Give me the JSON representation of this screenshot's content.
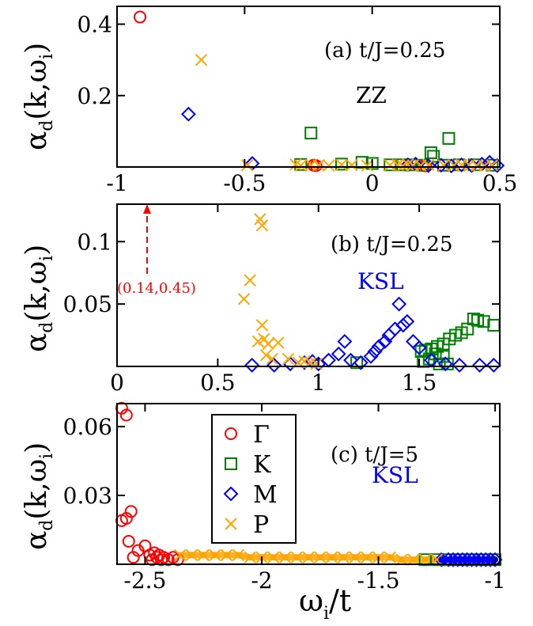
{
  "colors": {
    "Gamma": "#ff0000",
    "K": "#008000",
    "M": "#0000ff",
    "P": "#ffa500",
    "phase_zz": "#000000",
    "phase_ksl": "#0000ff",
    "arrow": "#ff0000"
  },
  "legend": {
    "items": [
      {
        "key": "Gamma",
        "label": "Γ",
        "marker": "circle"
      },
      {
        "key": "K",
        "label": "K",
        "marker": "square"
      },
      {
        "key": "M",
        "label": "M",
        "marker": "diamond"
      },
      {
        "key": "P",
        "label": "P",
        "marker": "cross"
      }
    ]
  },
  "x_axis_label": {
    "main": "ω",
    "sub": "i",
    "rest": "/t"
  },
  "chart_data": [
    {
      "type": "scatter",
      "panel": "a",
      "annotation": "(a) t/J=0.25",
      "phase": "ZZ",
      "phase_color_key": "phase_zz",
      "ylabel": {
        "main": "α",
        "sub": "d",
        "rest": "(k,ω",
        "sub2": "i",
        "close": ")"
      },
      "xlim": [
        -1,
        0.5
      ],
      "ylim": [
        0,
        0.45
      ],
      "xticks": [
        -1,
        -0.5,
        0,
        0.5
      ],
      "xticklabels": [
        "-1",
        "-0.5",
        "0",
        "0.5"
      ],
      "yticks": [
        0.2,
        0.4
      ],
      "yticklabels": [
        "0.2",
        "0.4"
      ],
      "series": [
        {
          "key": "Gamma",
          "x": [
            -0.91,
            -0.23,
            -0.22,
            0.2,
            0.21
          ],
          "y": [
            0.42,
            0.005,
            0.004,
            0.004,
            0.003
          ]
        },
        {
          "key": "K",
          "x": [
            -0.24,
            0.3,
            0.23,
            0.24,
            -0.04,
            -0.12,
            0.0,
            0.07,
            0.12,
            0.15,
            0.2,
            0.28,
            0.34,
            0.4,
            0.47,
            -0.28
          ],
          "y": [
            0.095,
            0.08,
            0.04,
            0.03,
            0.013,
            0.008,
            0.01,
            0.006,
            0.006,
            0.006,
            0.005,
            0.005,
            0.006,
            0.006,
            0.005,
            0.007
          ]
        },
        {
          "key": "M",
          "x": [
            -0.72,
            -0.47,
            0.14,
            0.17,
            0.22,
            0.27,
            0.31,
            0.35,
            0.39,
            0.43,
            0.46,
            0.49
          ],
          "y": [
            0.148,
            0.01,
            0.006,
            0.008,
            0.004,
            0.005,
            0.003,
            0.006,
            0.004,
            0.008,
            0.013,
            0.004
          ]
        },
        {
          "key": "P",
          "x": [
            -0.67,
            -0.49,
            -0.3,
            -0.28,
            -0.24,
            -0.21,
            -0.17,
            -0.12,
            -0.08,
            -0.02,
            0.07,
            0.1,
            0.12,
            0.14,
            0.16,
            0.19,
            0.22,
            0.28,
            0.32,
            0.35,
            0.38,
            0.41,
            0.44,
            0.47
          ],
          "y": [
            0.3,
            0.005,
            0.007,
            0.004,
            0.006,
            0.005,
            0.004,
            0.006,
            0.005,
            0.004,
            0.005,
            0.006,
            0.003,
            0.007,
            0.005,
            0.004,
            0.006,
            0.005,
            0.004,
            0.006,
            0.005,
            0.004,
            0.003,
            0.005
          ]
        }
      ]
    },
    {
      "type": "scatter",
      "panel": "b",
      "annotation": "(b) t/J=0.25",
      "phase": "KSL",
      "phase_color_key": "phase_ksl",
      "arrow_label": "(0.14,0.45)",
      "arrow_x": 0.14,
      "ylabel": {
        "main": "α",
        "sub": "d",
        "rest": "(k,ω",
        "sub2": "i",
        "close": ")"
      },
      "xlim": [
        0,
        1.9
      ],
      "ylim": [
        0,
        0.13
      ],
      "xticks": [
        0,
        0.5,
        1,
        1.5
      ],
      "xticklabels": [
        "0",
        "0.5",
        "1",
        "1.5"
      ],
      "yticks": [
        0.05,
        0.1
      ],
      "yticklabels": [
        "0.05",
        "0.1"
      ],
      "series": [
        {
          "key": "Gamma",
          "x": [],
          "y": []
        },
        {
          "key": "K",
          "x": [
            1.77,
            1.79,
            1.82,
            1.87,
            1.74,
            1.71,
            1.68,
            1.65,
            1.62,
            1.59,
            1.56,
            1.53,
            1.51,
            1.58,
            1.62,
            1.55,
            1.52,
            1.19,
            1.6,
            1.64
          ],
          "y": [
            0.038,
            0.037,
            0.036,
            0.033,
            0.03,
            0.027,
            0.025,
            0.022,
            0.018,
            0.016,
            0.014,
            0.013,
            0.012,
            0.01,
            0.008,
            0.006,
            0.004,
            0.003,
            0.002,
            0.002
          ]
        },
        {
          "key": "M",
          "x": [
            0.67,
            0.78,
            0.86,
            0.93,
            0.97,
            1.0,
            1.05,
            1.1,
            1.13,
            1.16,
            1.21,
            1.26,
            1.28,
            1.3,
            1.33,
            1.35,
            1.38,
            1.4,
            1.42,
            1.44,
            1.47,
            1.5,
            1.56,
            1.63,
            1.7,
            1.8,
            1.87
          ],
          "y": [
            0.001,
            0.001,
            0.002,
            0.003,
            0.004,
            0.002,
            0.005,
            0.01,
            0.02,
            0.005,
            0.003,
            0.008,
            0.012,
            0.016,
            0.02,
            0.025,
            0.03,
            0.05,
            0.033,
            0.036,
            0.02,
            0.015,
            0.005,
            0.002,
            0.001,
            0.001,
            0.001
          ]
        },
        {
          "key": "P",
          "x": [
            0.71,
            0.72,
            0.66,
            0.63,
            0.7,
            0.72,
            0.73,
            0.74,
            0.75,
            0.77,
            0.8,
            0.85,
            0.9,
            0.93,
            0.96,
            0.99
          ],
          "y": [
            0.118,
            0.113,
            0.069,
            0.054,
            0.02,
            0.033,
            0.022,
            0.009,
            0.018,
            0.006,
            0.019,
            0.006,
            0.003,
            0.004,
            0.003,
            0.002
          ]
        }
      ]
    },
    {
      "type": "scatter",
      "panel": "c",
      "annotation": "(c) t/J=5",
      "phase": "KSL",
      "phase_color_key": "phase_ksl",
      "ylabel": {
        "main": "α",
        "sub": "d",
        "rest": "(k,ω",
        "sub2": "i",
        "close": ")"
      },
      "xlim": [
        -2.62,
        -0.98
      ],
      "ylim": [
        0,
        0.07
      ],
      "xticks": [
        -2.5,
        -2,
        -1.5,
        -1
      ],
      "xticklabels": [
        "-2.5",
        "-2",
        "-1.5",
        "-1"
      ],
      "yticks": [
        0.03,
        0.06
      ],
      "yticklabels": [
        "0.03",
        "0.06"
      ],
      "series": [
        {
          "key": "Gamma",
          "x": [
            -2.6,
            -2.58,
            -2.6,
            -2.58,
            -2.56,
            -2.57,
            -2.55,
            -2.53,
            -2.5,
            -2.48,
            -2.47,
            -2.46,
            -2.45,
            -2.44,
            -2.43,
            -2.42,
            -2.4,
            -2.38,
            -2.36
          ],
          "y": [
            0.068,
            0.065,
            0.019,
            0.02,
            0.023,
            0.01,
            0.003,
            0.006,
            0.008,
            0.004,
            0.002,
            0.005,
            0.003,
            0.004,
            0.002,
            0.003,
            0.002,
            0.003,
            0.002
          ]
        },
        {
          "key": "K",
          "x": [
            -1.3,
            -1.25,
            -1.2,
            -1.15,
            -1.1,
            -1.05,
            -1.0
          ],
          "y": [
            0.002,
            0.002,
            0.002,
            0.002,
            0.002,
            0.002,
            0.002
          ]
        },
        {
          "key": "M",
          "x": [
            -1.23,
            -1.2,
            -1.18,
            -1.16,
            -1.14,
            -1.12,
            -1.1,
            -1.08,
            -1.06,
            -1.04,
            -1.02,
            -1.0
          ],
          "y": [
            0.002,
            0.002,
            0.002,
            0.002,
            0.002,
            0.002,
            0.002,
            0.002,
            0.002,
            0.002,
            0.002,
            0.002
          ]
        },
        {
          "key": "P",
          "x": [
            -2.35,
            -2.3,
            -2.25,
            -2.2,
            -2.15,
            -2.1,
            -2.05,
            -2.0,
            -1.95,
            -1.9,
            -1.85,
            -1.8,
            -1.75,
            -1.7,
            -1.65,
            -1.6,
            -1.55,
            -1.5,
            -1.45,
            -1.4,
            -1.35,
            -1.3,
            -1.25
          ],
          "y": [
            0.004,
            0.004,
            0.004,
            0.004,
            0.004,
            0.004,
            0.003,
            0.003,
            0.003,
            0.003,
            0.003,
            0.003,
            0.003,
            0.003,
            0.003,
            0.003,
            0.003,
            0.003,
            0.003,
            0.002,
            0.002,
            0.002,
            0.002
          ]
        }
      ]
    }
  ]
}
